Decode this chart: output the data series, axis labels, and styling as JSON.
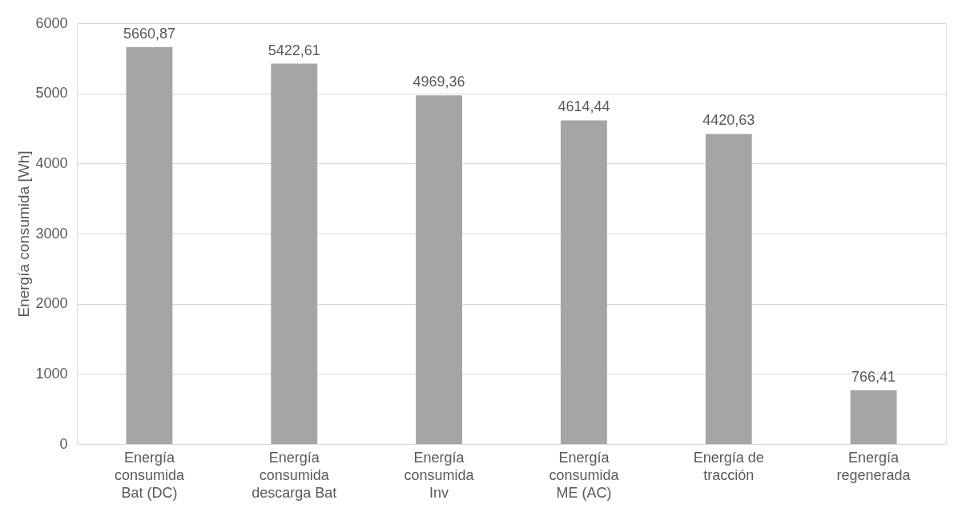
{
  "chart_data": {
    "type": "bar",
    "ylabel": "Energía consumida [Wh]",
    "categories": [
      "Energía\nconsumida\nBat (DC)",
      "Energía\nconsumida\ndescarga Bat",
      "Energía\nconsumida\nInv",
      "Energía\nconsumida\nME (AC)",
      "Energía de\ntracción",
      "Energía\nregenerada"
    ],
    "values": [
      5660.87,
      5422.61,
      4969.36,
      4614.44,
      4420.63,
      766.41
    ],
    "value_labels": [
      "5660,87",
      "5422,61",
      "4969,36",
      "4614,44",
      "4420,63",
      "766,41"
    ],
    "color": "#a5a5a5",
    "ylim": [
      0,
      6000
    ],
    "yticks": [
      0,
      1000,
      2000,
      3000,
      4000,
      5000,
      6000
    ],
    "grid": "y"
  }
}
